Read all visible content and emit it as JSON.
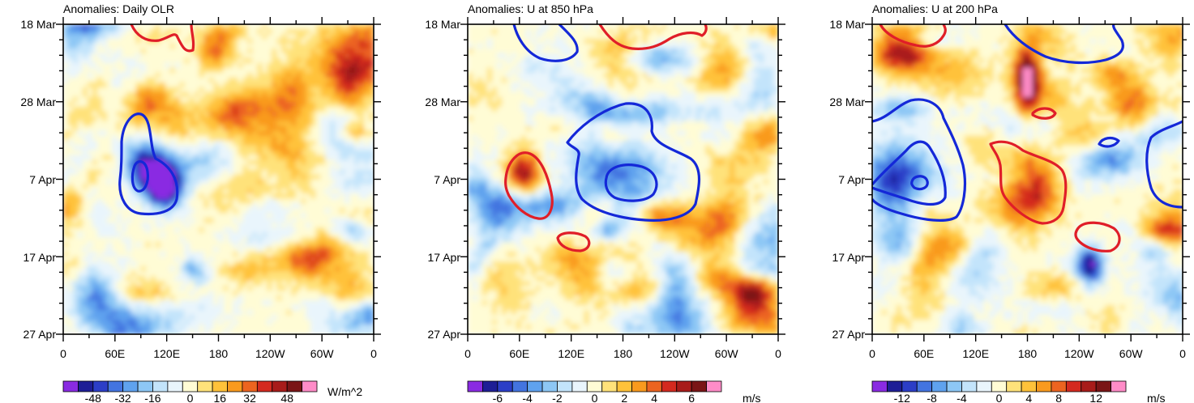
{
  "chart_data": [
    {
      "type": "heatmap",
      "title": "Anomalies: Daily OLR",
      "x_tick_labels": [
        "0",
        "60E",
        "120E",
        "180",
        "120W",
        "60W",
        "0"
      ],
      "y_tick_labels": [
        "18 Mar",
        "28 Mar",
        "7 Apr",
        "17 Apr",
        "27 Apr"
      ],
      "xlim": [
        0,
        360
      ],
      "ylim": [
        "18 Mar",
        "27 Apr"
      ],
      "colorbar": {
        "labels": [
          "-48",
          "-32",
          "-16",
          "0",
          "16",
          "32",
          "48"
        ],
        "units": "W/m^2",
        "range": [
          -56,
          56
        ],
        "step": 8
      },
      "contours": [
        {
          "color": "blue",
          "sign": "negative",
          "region_lon": [
            60,
            130
          ],
          "region_date": [
            "31 Mar",
            "12 Apr"
          ]
        },
        {
          "color": "red",
          "sign": "positive",
          "region_lon": [
            80,
            140
          ],
          "region_date": [
            "18 Mar",
            "22 Mar"
          ]
        }
      ]
    },
    {
      "type": "heatmap",
      "title": "Anomalies: U at 850 hPa",
      "x_tick_labels": [
        "0",
        "60E",
        "120E",
        "180",
        "120W",
        "60W",
        "0"
      ],
      "y_tick_labels": [
        "18 Mar",
        "28 Mar",
        "7 Apr",
        "17 Apr",
        "27 Apr"
      ],
      "xlim": [
        0,
        360
      ],
      "ylim": [
        "18 Mar",
        "27 Apr"
      ],
      "colorbar": {
        "labels": [
          "-6",
          "-4",
          "-2",
          "0",
          "2",
          "4",
          "6"
        ],
        "units": "m/s",
        "range": [
          -7,
          7
        ],
        "step": 1
      },
      "contours": [
        {
          "color": "blue",
          "sign": "negative",
          "region_lon": [
            120,
            265
          ],
          "region_date": [
            "29 Mar",
            "13 Apr"
          ]
        },
        {
          "color": "blue",
          "sign": "negative",
          "region_lon": [
            55,
            125
          ],
          "region_date": [
            "18 Mar",
            "22 Mar"
          ]
        },
        {
          "color": "red",
          "sign": "positive",
          "region_lon": [
            45,
            100
          ],
          "region_date": [
            "3 Apr",
            "13 Apr"
          ]
        },
        {
          "color": "red",
          "sign": "positive",
          "region_lon": [
            110,
            140
          ],
          "region_date": [
            "15 Apr",
            "17 Apr"
          ]
        },
        {
          "color": "red",
          "sign": "positive",
          "region_lon": [
            155,
            285
          ],
          "region_date": [
            "18 Mar",
            "22 Mar"
          ]
        }
      ]
    },
    {
      "type": "heatmap",
      "title": "Anomalies: U at 200 hPa",
      "x_tick_labels": [
        "0",
        "60E",
        "120E",
        "180",
        "120W",
        "60W",
        "0"
      ],
      "y_tick_labels": [
        "18 Mar",
        "28 Mar",
        "7 Apr",
        "17 Apr",
        "27 Apr"
      ],
      "xlim": [
        0,
        360
      ],
      "ylim": [
        "18 Mar",
        "27 Apr"
      ],
      "colorbar": {
        "labels": [
          "-12",
          "-8",
          "-4",
          "0",
          "4",
          "8",
          "12"
        ],
        "units": "m/s",
        "range": [
          -14,
          14
        ],
        "step": 2
      },
      "contours": [
        {
          "color": "blue",
          "sign": "negative",
          "region_lon": [
            0,
            105
          ],
          "region_date": [
            "27 Mar",
            "12 Apr"
          ]
        },
        {
          "color": "blue",
          "sign": "negative",
          "region_lon": [
            160,
            285
          ],
          "region_date": [
            "18 Mar",
            "23 Mar"
          ]
        },
        {
          "color": "blue",
          "sign": "negative",
          "region_lon": [
            310,
            360
          ],
          "region_date": [
            "1 Apr",
            "10 Apr"
          ]
        },
        {
          "color": "red",
          "sign": "positive",
          "region_lon": [
            140,
            230
          ],
          "region_date": [
            "3 Apr",
            "13 Apr"
          ]
        },
        {
          "color": "red",
          "sign": "positive",
          "region_lon": [
            235,
            290
          ],
          "region_date": [
            "14 Apr",
            "17 Apr"
          ]
        },
        {
          "color": "red",
          "sign": "positive",
          "region_lon": [
            185,
            215
          ],
          "region_date": [
            "29 Mar",
            "31 Mar"
          ]
        },
        {
          "color": "red",
          "sign": "positive",
          "region_lon": [
            10,
            80
          ],
          "region_date": [
            "18 Mar",
            "22 Mar"
          ]
        }
      ]
    }
  ],
  "palette": [
    "#8a2be2",
    "#1e1e96",
    "#2c3ec7",
    "#4374e0",
    "#5fa2ee",
    "#8dc7f5",
    "#c3e4fb",
    "#e9f5fc",
    "#fffcd5",
    "#ffe27a",
    "#ffc23a",
    "#f99a1e",
    "#ec6420",
    "#d42a1f",
    "#a81c1a",
    "#7a1516",
    "#ff8cc8"
  ]
}
